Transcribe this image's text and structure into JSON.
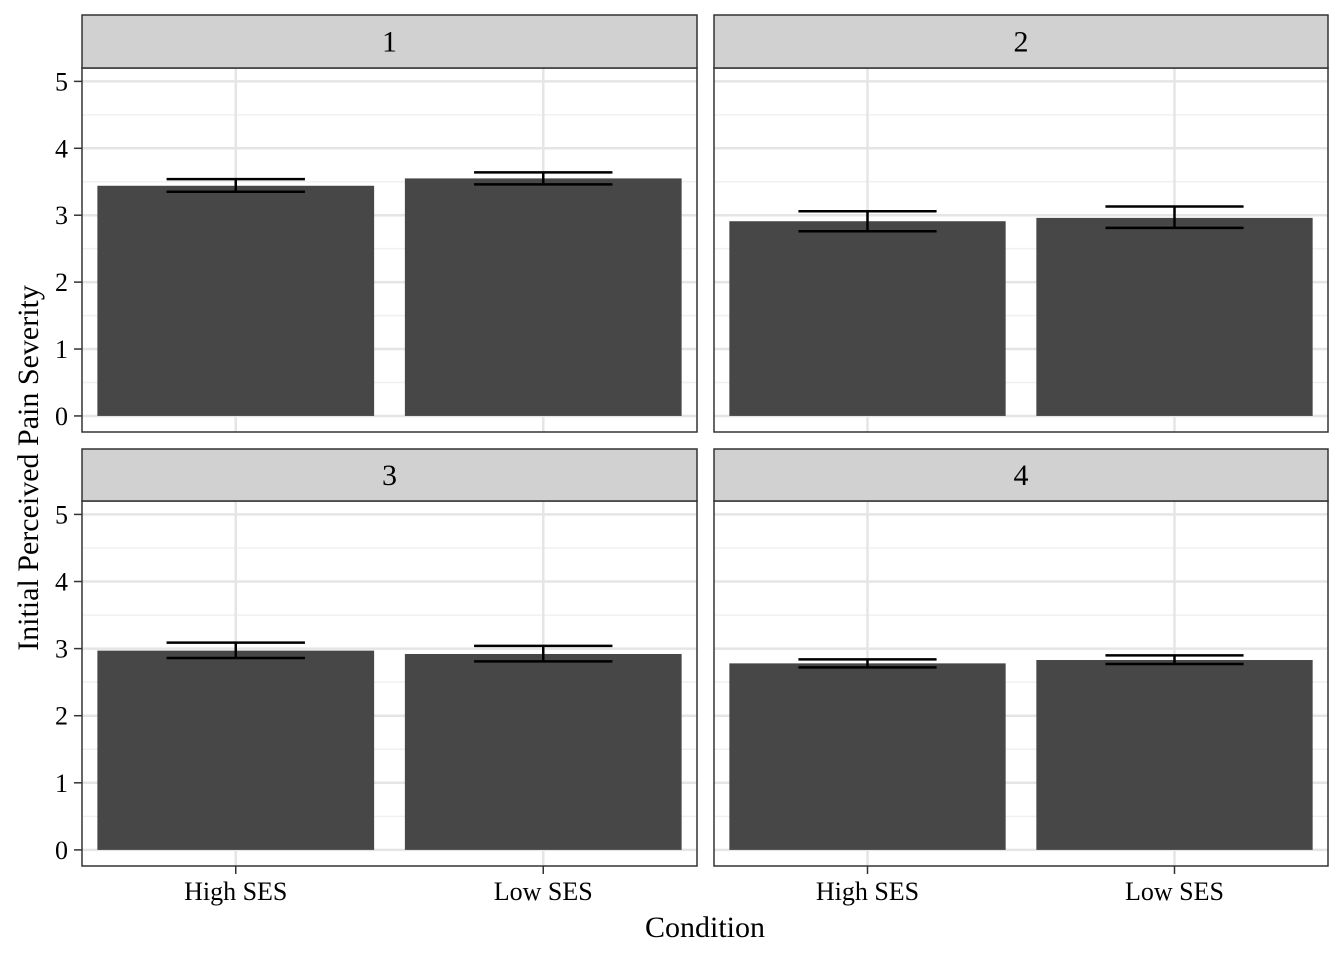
{
  "chart_data": {
    "type": "bar",
    "xlabel": "Condition",
    "ylabel": "Initial Perceived Pain Severity",
    "ylim": [
      -0.24,
      5.2
    ],
    "yticks": [
      0,
      1,
      2,
      3,
      4,
      5
    ],
    "grid": true,
    "categories": [
      "High SES",
      "Low SES"
    ],
    "panels": [
      {
        "label": "1",
        "values": [
          3.44,
          3.55
        ],
        "error_low": [
          3.35,
          3.46
        ],
        "error_high": [
          3.54,
          3.64
        ]
      },
      {
        "label": "2",
        "values": [
          2.91,
          2.96
        ],
        "error_low": [
          2.76,
          2.81
        ],
        "error_high": [
          3.06,
          3.13
        ]
      },
      {
        "label": "3",
        "values": [
          2.97,
          2.92
        ],
        "error_low": [
          2.86,
          2.81
        ],
        "error_high": [
          3.09,
          3.04
        ]
      },
      {
        "label": "4",
        "values": [
          2.78,
          2.83
        ],
        "error_low": [
          2.72,
          2.77
        ],
        "error_high": [
          2.84,
          2.9
        ]
      }
    ],
    "colors": {
      "bar": "#474747",
      "strip_fill": "#d1d1d1",
      "panel_border": "#333333",
      "grid_major": "#e5e5e5",
      "grid_minor": "#f0f0f0",
      "errorbar": "#000000"
    }
  }
}
